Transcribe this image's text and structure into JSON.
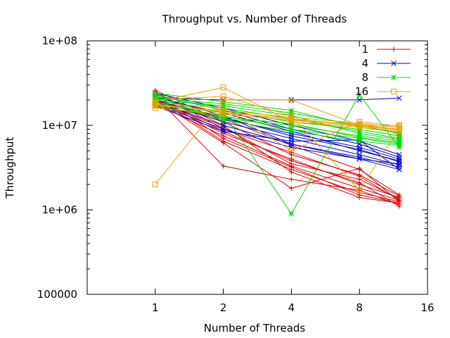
{
  "chart_data": {
    "type": "line",
    "title": "Throughput vs. Number of Threads",
    "xlabel": "Number of Threads",
    "ylabel": "Throughput",
    "x_scale": "log2",
    "y_scale": "log10",
    "xlim": [
      0.5,
      16
    ],
    "ylim": [
      100000,
      100000000
    ],
    "x_ticks": [
      1,
      2,
      4,
      8,
      16
    ],
    "x_tick_labels": [
      "1",
      "2",
      "4",
      "8",
      "16"
    ],
    "y_ticks": [
      100000,
      1000000,
      10000000,
      100000000
    ],
    "y_tick_labels": [
      "100000",
      "1e+06",
      "1e+07",
      "1e+08"
    ],
    "x": [
      1,
      2,
      4,
      8,
      12
    ],
    "legend_position": "top-right",
    "series": [
      {
        "name": "1",
        "color": "#dd0000",
        "marker": "plus",
        "lines": [
          [
            25000000,
            9000000,
            4800000,
            2500000,
            1300000
          ],
          [
            23000000,
            7000000,
            3200000,
            1500000,
            1200000
          ],
          [
            21000000,
            6500000,
            3000000,
            1600000,
            1250000
          ],
          [
            20000000,
            8000000,
            4000000,
            2000000,
            1400000
          ],
          [
            22000000,
            3300000,
            2300000,
            1700000,
            1150000
          ],
          [
            19000000,
            9500000,
            3500000,
            2300000,
            1350000
          ],
          [
            24000000,
            10000000,
            2800000,
            1400000,
            1200000
          ],
          [
            18000000,
            7500000,
            3300000,
            1800000,
            1300000
          ],
          [
            26000000,
            11000000,
            4500000,
            2600000,
            1450000
          ],
          [
            20000000,
            6200000,
            1800000,
            3100000,
            1250000
          ],
          [
            17000000,
            12000000,
            5800000,
            3000000,
            1500000
          ],
          [
            21000000,
            8500000,
            3800000,
            2100000,
            1100000
          ]
        ]
      },
      {
        "name": "4",
        "color": "#0000cc",
        "marker": "x",
        "lines": [
          [
            22000000,
            13000000,
            6000000,
            4000000,
            3000000
          ],
          [
            21000000,
            20000000,
            20000000,
            20000000,
            21000000
          ],
          [
            20000000,
            12000000,
            8000000,
            5500000,
            4000000
          ],
          [
            19000000,
            10000000,
            6000000,
            4200000,
            3200000
          ],
          [
            23000000,
            15000000,
            9000000,
            6000000,
            4200000
          ],
          [
            18000000,
            9000000,
            5500000,
            4000000,
            3500000
          ],
          [
            21000000,
            14000000,
            8500000,
            5000000,
            3800000
          ],
          [
            20000000,
            11000000,
            7000000,
            4500000,
            3400000
          ],
          [
            24000000,
            16000000,
            10000000,
            6500000,
            4500000
          ],
          [
            17000000,
            8500000,
            6500000,
            6700000,
            3000000
          ],
          [
            19000000,
            12500000,
            7500000,
            5200000,
            3700000
          ]
        ]
      },
      {
        "name": "8",
        "color": "#00dd00",
        "marker": "star",
        "lines": [
          [
            22000000,
            16000000,
            12000000,
            8500000,
            7000000
          ],
          [
            20000000,
            14000000,
            900000,
            23000000,
            5500000
          ],
          [
            21000000,
            18000000,
            14000000,
            10000000,
            8000000
          ],
          [
            19000000,
            12000000,
            10000000,
            7500000,
            6500000
          ],
          [
            23000000,
            15000000,
            11000000,
            9000000,
            7500000
          ],
          [
            18000000,
            13000000,
            9000000,
            7000000,
            6000000
          ],
          [
            20000000,
            17000000,
            13000000,
            8000000,
            6800000
          ],
          [
            22000000,
            11500000,
            8500000,
            6500000,
            5800000
          ],
          [
            24000000,
            19000000,
            15000000,
            9500000,
            8200000
          ],
          [
            17000000,
            12500000,
            10500000,
            7200000,
            6200000
          ]
        ]
      },
      {
        "name": "16",
        "color": "#f0a000",
        "marker": "square",
        "lines": [
          [
            2000000,
            20000000,
            20000000,
            10000000,
            10000000
          ],
          [
            18000000,
            14000000,
            12000000,
            10000000,
            9000000
          ],
          [
            17000000,
            15000000,
            12500000,
            10500000,
            9500000
          ],
          [
            19000000,
            28000000,
            11000000,
            9500000,
            8500000
          ],
          [
            16000000,
            13500000,
            11500000,
            9800000,
            8800000
          ],
          [
            20000000,
            22000000,
            13000000,
            1700000,
            9200000
          ],
          [
            17500000,
            14500000,
            11800000,
            10200000,
            9000000
          ],
          [
            18500000,
            16000000,
            5000000,
            11000000,
            9800000
          ]
        ]
      }
    ]
  }
}
